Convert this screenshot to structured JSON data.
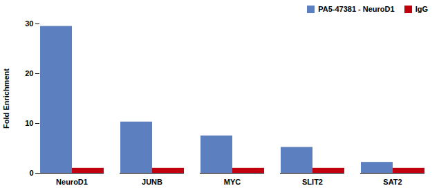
{
  "chart_data": {
    "type": "bar",
    "categories": [
      "NeuroD1",
      "JUNB",
      "MYC",
      "SLIT2",
      "SAT2"
    ],
    "series": [
      {
        "name": "PA5-47381 - NeuroD1",
        "color": "#5B7FBF",
        "values": [
          29.5,
          10.3,
          7.5,
          5.2,
          2.2
        ]
      },
      {
        "name": "IgG",
        "color": "#C0000C",
        "values": [
          1.0,
          1.0,
          1.0,
          1.0,
          1.0
        ]
      }
    ],
    "ylabel": "Fold Enrichment",
    "ylim": [
      0,
      30
    ],
    "yticks": [
      0,
      10,
      20,
      30
    ],
    "grid": false,
    "legend": "upper right"
  }
}
